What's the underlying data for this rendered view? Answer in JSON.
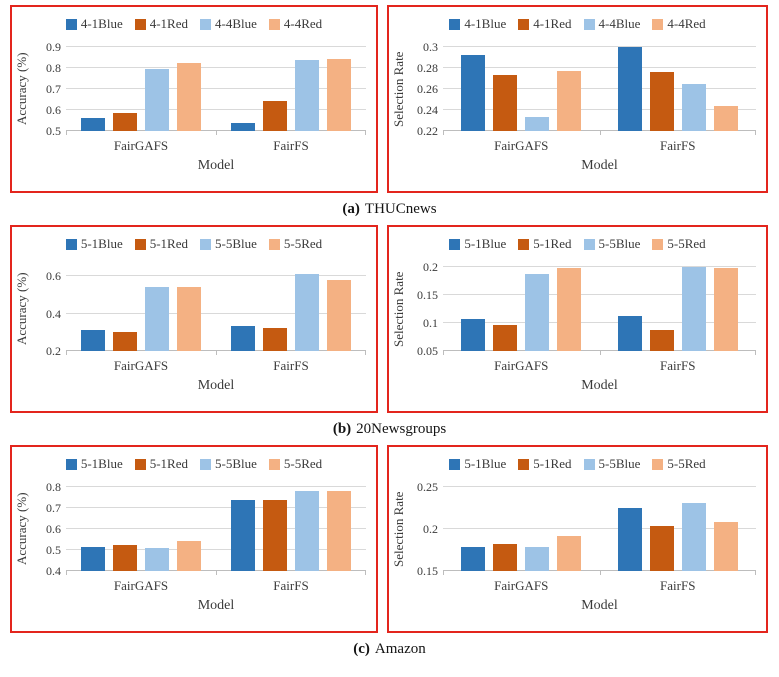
{
  "colors": {
    "panel_border": "#e3251d",
    "gridline": "#d9d9d9",
    "axis_line": "#bdbdbd",
    "text": "#3a3a3a",
    "series_dark_blue": "#2E75B6",
    "series_dark_orange": "#C55A11",
    "series_light_blue": "#9DC3E6",
    "series_light_orange": "#F4B183"
  },
  "captions": [
    {
      "label": "(a)",
      "text": "THUCnews"
    },
    {
      "label": "(b)",
      "text": "20Newsgroups"
    },
    {
      "label": "(c)",
      "text": "Amazon"
    }
  ],
  "chart_data": [
    {
      "type": "bar",
      "figure": "(a) THUCnews",
      "xlabel": "Model",
      "ylabel": "Accuracy (%)",
      "categories": [
        "FairGAFS",
        "FairFS"
      ],
      "ylim": [
        0.5,
        0.9
      ],
      "yticks": [
        {
          "v": 0.5,
          "label": "0.5"
        },
        {
          "v": 0.6,
          "label": "0.6"
        },
        {
          "v": 0.7,
          "label": "0.7"
        },
        {
          "v": 0.8,
          "label": "0.8"
        },
        {
          "v": 0.9,
          "label": "0.9"
        }
      ],
      "grid": true,
      "legend_position": "top",
      "series": [
        {
          "name": "4-1Blue",
          "color": "#2E75B6",
          "values": [
            0.561,
            0.537
          ]
        },
        {
          "name": "4-1Red",
          "color": "#C55A11",
          "values": [
            0.588,
            0.645
          ]
        },
        {
          "name": "4-4Blue",
          "color": "#9DC3E6",
          "values": [
            0.793,
            0.838
          ]
        },
        {
          "name": "4-4Red",
          "color": "#F4B183",
          "values": [
            0.825,
            0.842
          ]
        }
      ]
    },
    {
      "type": "bar",
      "figure": "(a) THUCnews",
      "xlabel": "Model",
      "ylabel": "Selection Rate",
      "categories": [
        "FairGAFS",
        "FairFS"
      ],
      "ylim": [
        0.22,
        0.3
      ],
      "yticks": [
        {
          "v": 0.22,
          "label": "0.22"
        },
        {
          "v": 0.24,
          "label": "0.24"
        },
        {
          "v": 0.26,
          "label": "0.26"
        },
        {
          "v": 0.28,
          "label": "0.28"
        },
        {
          "v": 0.3,
          "label": "0.3"
        }
      ],
      "grid": true,
      "legend_position": "top",
      "series": [
        {
          "name": "4-1Blue",
          "color": "#2E75B6",
          "values": [
            0.292,
            0.3
          ]
        },
        {
          "name": "4-1Red",
          "color": "#C55A11",
          "values": [
            0.273,
            0.276
          ]
        },
        {
          "name": "4-4Blue",
          "color": "#9DC3E6",
          "values": [
            0.233,
            0.265
          ]
        },
        {
          "name": "4-4Red",
          "color": "#F4B183",
          "values": [
            0.277,
            0.244
          ]
        }
      ]
    },
    {
      "type": "bar",
      "figure": "(b) 20Newsgroups",
      "xlabel": "Model",
      "ylabel": "Accuracy (%)",
      "categories": [
        "FairGAFS",
        "FairFS"
      ],
      "ylim": [
        0.2,
        0.65
      ],
      "yticks": [
        {
          "v": 0.2,
          "label": "0.2"
        },
        {
          "v": 0.4,
          "label": "0.4"
        },
        {
          "v": 0.6,
          "label": "0.6"
        }
      ],
      "grid": true,
      "legend_position": "top",
      "series": [
        {
          "name": "5-1Blue",
          "color": "#2E75B6",
          "values": [
            0.31,
            0.334
          ]
        },
        {
          "name": "5-1Red",
          "color": "#C55A11",
          "values": [
            0.303,
            0.321
          ]
        },
        {
          "name": "5-5Blue",
          "color": "#9DC3E6",
          "values": [
            0.545,
            0.614
          ]
        },
        {
          "name": "5-5Red",
          "color": "#F4B183",
          "values": [
            0.541,
            0.581
          ]
        }
      ]
    },
    {
      "type": "bar",
      "figure": "(b) 20Newsgroups",
      "xlabel": "Model",
      "ylabel": "Selection Rate",
      "categories": [
        "FairGAFS",
        "FairFS"
      ],
      "ylim": [
        0.05,
        0.2
      ],
      "yticks": [
        {
          "v": 0.05,
          "label": "0.05"
        },
        {
          "v": 0.1,
          "label": "0.1"
        },
        {
          "v": 0.15,
          "label": "0.15"
        },
        {
          "v": 0.2,
          "label": "0.2"
        }
      ],
      "grid": true,
      "legend_position": "top",
      "series": [
        {
          "name": "5-1Blue",
          "color": "#2E75B6",
          "values": [
            0.108,
            0.113
          ]
        },
        {
          "name": "5-1Red",
          "color": "#C55A11",
          "values": [
            0.096,
            0.088
          ]
        },
        {
          "name": "5-5Blue",
          "color": "#9DC3E6",
          "values": [
            0.188,
            0.2
          ]
        },
        {
          "name": "5-5Red",
          "color": "#F4B183",
          "values": [
            0.199,
            0.199
          ]
        }
      ]
    },
    {
      "type": "bar",
      "figure": "(c) Amazon",
      "xlabel": "Model",
      "ylabel": "Accuracy (%)",
      "categories": [
        "FairGAFS",
        "FairFS"
      ],
      "ylim": [
        0.4,
        0.8
      ],
      "yticks": [
        {
          "v": 0.4,
          "label": "0.4"
        },
        {
          "v": 0.5,
          "label": "0.5"
        },
        {
          "v": 0.6,
          "label": "0.6"
        },
        {
          "v": 0.7,
          "label": "0.7"
        },
        {
          "v": 0.8,
          "label": "0.8"
        }
      ],
      "grid": true,
      "legend_position": "top",
      "series": [
        {
          "name": "5-1Blue",
          "color": "#2E75B6",
          "values": [
            0.513,
            0.739
          ]
        },
        {
          "name": "5-1Red",
          "color": "#C55A11",
          "values": [
            0.524,
            0.74
          ]
        },
        {
          "name": "5-5Blue",
          "color": "#9DC3E6",
          "values": [
            0.509,
            0.779
          ]
        },
        {
          "name": "5-5Red",
          "color": "#F4B183",
          "values": [
            0.544,
            0.779
          ]
        }
      ]
    },
    {
      "type": "bar",
      "figure": "(c) Amazon",
      "xlabel": "Model",
      "ylabel": "Selection Rate",
      "categories": [
        "FairGAFS",
        "FairFS"
      ],
      "ylim": [
        0.15,
        0.25
      ],
      "yticks": [
        {
          "v": 0.15,
          "label": "0.15"
        },
        {
          "v": 0.2,
          "label": "0.2"
        },
        {
          "v": 0.25,
          "label": "0.25"
        }
      ],
      "grid": true,
      "legend_position": "top",
      "series": [
        {
          "name": "5-1Blue",
          "color": "#2E75B6",
          "values": [
            0.178,
            0.225
          ]
        },
        {
          "name": "5-1Red",
          "color": "#C55A11",
          "values": [
            0.182,
            0.204
          ]
        },
        {
          "name": "5-5Blue",
          "color": "#9DC3E6",
          "values": [
            0.178,
            0.231
          ]
        },
        {
          "name": "5-5Red",
          "color": "#F4B183",
          "values": [
            0.192,
            0.208
          ]
        }
      ]
    }
  ]
}
